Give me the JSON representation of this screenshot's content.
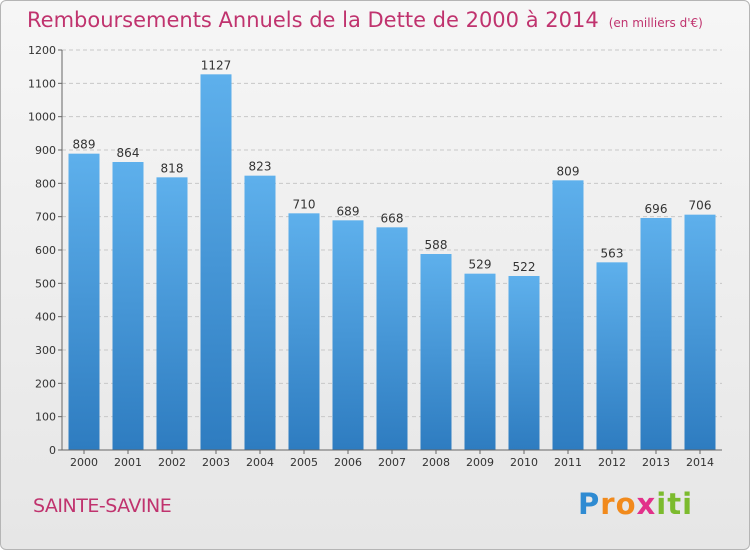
{
  "title": "Remboursements Annuels de la Dette de 2000 à 2014",
  "unit": "(en milliers d'€)",
  "place": "SAINTE-SAVINE",
  "logo": {
    "p": "P",
    "r": "r",
    "o": "o",
    "x": "x",
    "i1": "i",
    "t": "t",
    "i2": "i"
  },
  "colors": {
    "title": "#c0336e",
    "bar_top": "#5eb0ec",
    "bar_bottom": "#2e7cc0"
  },
  "chart_data": {
    "type": "bar",
    "categories": [
      "2000",
      "2001",
      "2002",
      "2003",
      "2004",
      "2005",
      "2006",
      "2007",
      "2008",
      "2009",
      "2010",
      "2011",
      "2012",
      "2013",
      "2014"
    ],
    "values": [
      889,
      864,
      818,
      1127,
      823,
      710,
      689,
      668,
      588,
      529,
      522,
      809,
      563,
      696,
      706
    ],
    "ylim": [
      0,
      1200
    ],
    "yticks": [
      0,
      100,
      200,
      300,
      400,
      500,
      600,
      700,
      800,
      900,
      1000,
      1100,
      1200
    ],
    "grid": true
  }
}
